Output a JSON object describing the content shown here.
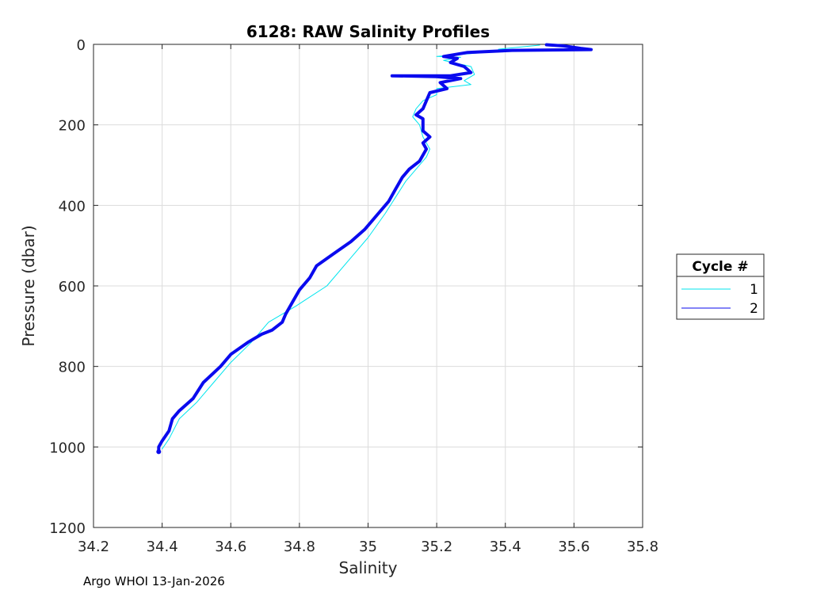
{
  "chart_data": {
    "type": "line",
    "title": "6128: RAW Salinity Profiles",
    "xlabel": "Salinity",
    "ylabel": "Pressure (dbar)",
    "xlim": [
      34.2,
      35.8
    ],
    "ylim": [
      0,
      1200
    ],
    "y_reversed": true,
    "grid": true,
    "xticks": [
      34.2,
      34.4,
      34.6,
      34.8,
      35,
      35.2,
      35.4,
      35.6,
      35.8
    ],
    "xtick_labels": [
      "34.2",
      "34.4",
      "34.6",
      "34.8",
      "35",
      "35.2",
      "35.4",
      "35.6",
      "35.8"
    ],
    "yticks": [
      0,
      200,
      400,
      600,
      800,
      1000,
      1200
    ],
    "ytick_labels": [
      "0",
      "200",
      "400",
      "600",
      "800",
      "1000",
      "1200"
    ],
    "legend": {
      "title": "Cycle #",
      "placement": "outside-right"
    },
    "series": [
      {
        "name": "1",
        "color": "#00e5ee",
        "points": [
          [
            35.5,
            2
          ],
          [
            35.38,
            12
          ],
          [
            35.44,
            14
          ],
          [
            35.34,
            20
          ],
          [
            35.2,
            30
          ],
          [
            35.27,
            32
          ],
          [
            35.22,
            40
          ],
          [
            35.3,
            55
          ],
          [
            35.31,
            75
          ],
          [
            35.28,
            90
          ],
          [
            35.3,
            100
          ],
          [
            35.2,
            110
          ],
          [
            35.2,
            125
          ],
          [
            35.16,
            140
          ],
          [
            35.14,
            160
          ],
          [
            35.13,
            180
          ],
          [
            35.15,
            200
          ],
          [
            35.16,
            230
          ],
          [
            35.18,
            260
          ],
          [
            35.17,
            280
          ],
          [
            35.14,
            310
          ],
          [
            35.11,
            340
          ],
          [
            35.08,
            380
          ],
          [
            35.05,
            420
          ],
          [
            35.0,
            480
          ],
          [
            34.95,
            530
          ],
          [
            34.88,
            600
          ],
          [
            34.79,
            650
          ],
          [
            34.71,
            690
          ],
          [
            34.66,
            740
          ],
          [
            34.6,
            790
          ],
          [
            34.55,
            840
          ],
          [
            34.5,
            890
          ],
          [
            34.45,
            930
          ],
          [
            34.42,
            980
          ],
          [
            34.4,
            1005
          ]
        ]
      },
      {
        "name": "2",
        "color": "#0a0aee",
        "points": [
          [
            35.52,
            1
          ],
          [
            35.57,
            4
          ],
          [
            35.62,
            10
          ],
          [
            35.65,
            13
          ],
          [
            35.42,
            15
          ],
          [
            35.29,
            20
          ],
          [
            35.22,
            30
          ],
          [
            35.26,
            35
          ],
          [
            35.24,
            45
          ],
          [
            35.28,
            55
          ],
          [
            35.3,
            70
          ],
          [
            35.24,
            78
          ],
          [
            35.07,
            78
          ],
          [
            35.2,
            80
          ],
          [
            35.27,
            85
          ],
          [
            35.21,
            95
          ],
          [
            35.23,
            110
          ],
          [
            35.18,
            120
          ],
          [
            35.17,
            140
          ],
          [
            35.16,
            160
          ],
          [
            35.14,
            175
          ],
          [
            35.16,
            185
          ],
          [
            35.16,
            200
          ],
          [
            35.16,
            215
          ],
          [
            35.18,
            230
          ],
          [
            35.16,
            245
          ],
          [
            35.17,
            260
          ],
          [
            35.15,
            290
          ],
          [
            35.12,
            310
          ],
          [
            35.1,
            330
          ],
          [
            35.08,
            360
          ],
          [
            35.06,
            390
          ],
          [
            35.03,
            420
          ],
          [
            34.99,
            460
          ],
          [
            34.95,
            490
          ],
          [
            34.9,
            520
          ],
          [
            34.85,
            550
          ],
          [
            34.83,
            580
          ],
          [
            34.8,
            610
          ],
          [
            34.78,
            640
          ],
          [
            34.76,
            670
          ],
          [
            34.75,
            690
          ],
          [
            34.72,
            710
          ],
          [
            34.69,
            720
          ],
          [
            34.65,
            740
          ],
          [
            34.6,
            770
          ],
          [
            34.57,
            800
          ],
          [
            34.52,
            840
          ],
          [
            34.49,
            880
          ],
          [
            34.45,
            910
          ],
          [
            34.43,
            930
          ],
          [
            34.42,
            960
          ],
          [
            34.4,
            985
          ],
          [
            34.39,
            1000
          ],
          [
            34.39,
            1012
          ]
        ]
      }
    ]
  },
  "footer": {
    "text": "Argo WHOI 13-Jan-2026"
  }
}
